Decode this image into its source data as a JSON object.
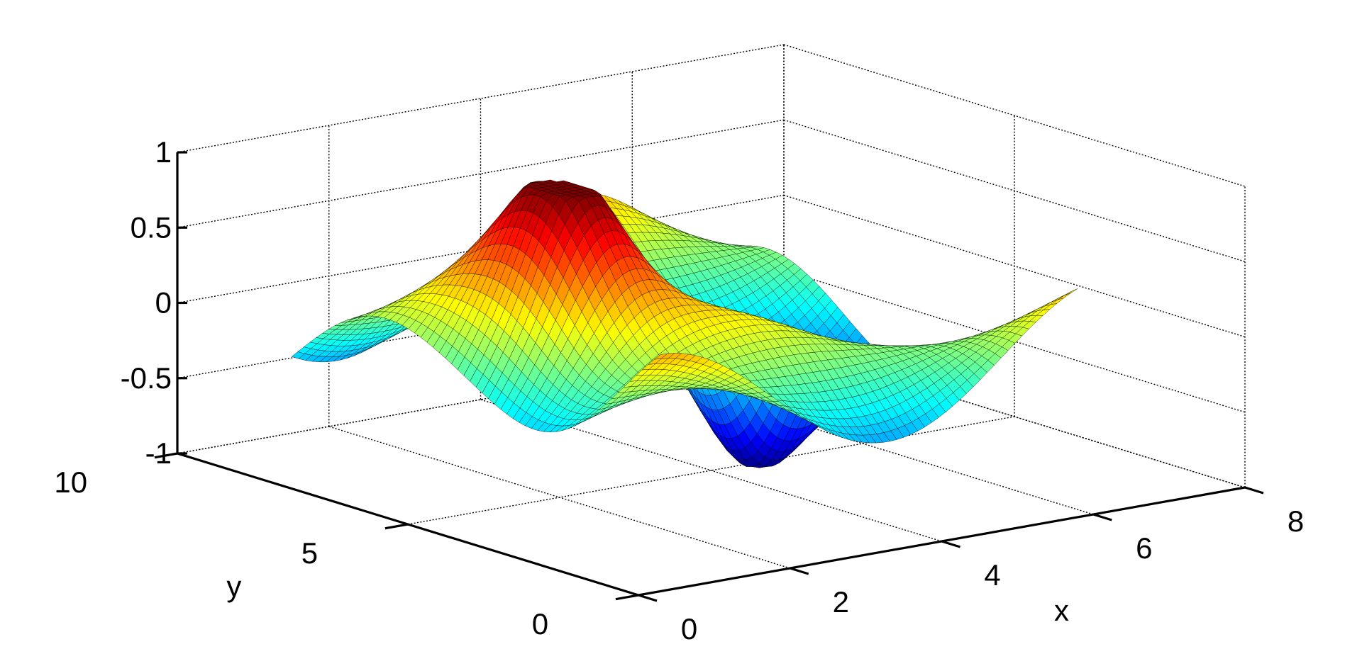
{
  "chart_data": {
    "type": "surface",
    "title": "",
    "xlabel": "x",
    "ylabel": "y",
    "zlabel": "",
    "xlim": [
      0,
      8
    ],
    "ylim": [
      0,
      10
    ],
    "zlim": [
      -1,
      1
    ],
    "x_ticks": [
      {
        "value": 0,
        "label": "0"
      },
      {
        "value": 2,
        "label": "2"
      },
      {
        "value": 4,
        "label": "4"
      },
      {
        "value": 6,
        "label": "6"
      },
      {
        "value": 8,
        "label": "8"
      }
    ],
    "y_ticks": [
      {
        "value": 0,
        "label": "0"
      },
      {
        "value": 5,
        "label": "5"
      },
      {
        "value": 10,
        "label": "10"
      }
    ],
    "z_ticks": [
      {
        "value": -1,
        "label": "-1"
      },
      {
        "value": -0.5,
        "label": "-0.5"
      },
      {
        "value": 0,
        "label": "0"
      },
      {
        "value": 0.5,
        "label": "0.5"
      },
      {
        "value": 1,
        "label": "1"
      }
    ],
    "surface": {
      "x_range": [
        0.9,
        6.4
      ],
      "y_range": [
        1.0,
        9.0
      ],
      "description_of_values": "z(x,y) in [-1,1], rolling sinusoidal sheet with a central peak near x=2.3,y=5 (z≈0.95) and trough near x=4.5,y=5 (z≈-0.95)",
      "colormap": "jet"
    },
    "grid": true,
    "box": false,
    "view": {
      "azimuth": -37.5,
      "elevation": 30
    }
  }
}
